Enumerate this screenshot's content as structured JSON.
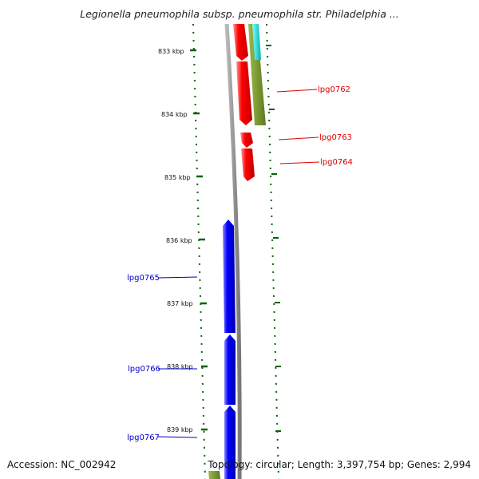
{
  "title": "Legionella pneumophila subsp. pneumophila str. Philadelphia ...",
  "footer": {
    "accession": "Accession: NC_002942",
    "summary": "Topology: circular; Length: 3,397,754 bp; Genes: 2,994"
  },
  "scale_labels": [
    "833 kbp",
    "834 kbp",
    "835 kbp",
    "836 kbp",
    "837 kbp",
    "838 kbp",
    "839 kbp"
  ],
  "gene_labels": [
    {
      "text": "lpg0762",
      "color": "#e00000"
    },
    {
      "text": "lpg0763",
      "color": "#e00000"
    },
    {
      "text": "lpg0764",
      "color": "#e00000"
    },
    {
      "text": "lpg0765",
      "color": "#0000cc"
    },
    {
      "text": "lpg0766",
      "color": "#0000cc"
    },
    {
      "text": "lpg0767",
      "color": "#0000cc"
    }
  ],
  "colors": {
    "forward_strand": "#ff0000",
    "reverse_strand": "#0000ff",
    "track_olive": "#6b8e23",
    "track_cyan": "#00cccc",
    "backbone": "#888888",
    "ticks": "#006400"
  }
}
